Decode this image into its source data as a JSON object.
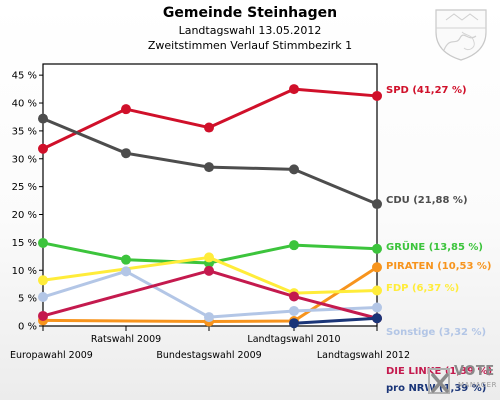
{
  "header": {
    "title": "Gemeinde Steinhagen",
    "subtitle1": "Landtagswahl 13.05.2012",
    "subtitle2": "Zweitstimmen Verlauf Stimmbezirk 1"
  },
  "logo": {
    "line1": "VOTE",
    "line2": "MANAGER"
  },
  "chart_data": {
    "type": "line",
    "x": [
      "Europawahl 2009",
      "Ratswahl 2009",
      "Bundestagswahl 2009",
      "Landtagswahl 2010",
      "Landtagswahl 2012"
    ],
    "ylim": [
      0,
      47
    ],
    "yticks": [
      "0 %",
      "5 %",
      "10 %",
      "15 %",
      "20 %",
      "25 %",
      "30 %",
      "35 %",
      "40 %",
      "45 %"
    ],
    "ytick_values": [
      0,
      5,
      10,
      15,
      20,
      25,
      30,
      35,
      40,
      45
    ],
    "grid": false,
    "series": [
      {
        "name": "SPD",
        "label": "SPD (41,27 %)",
        "color": "#d0102a",
        "values": [
          31.8,
          38.9,
          35.6,
          42.5,
          41.27
        ]
      },
      {
        "name": "CDU",
        "label": "CDU (21,88 %)",
        "color": "#4d4d4d",
        "values": [
          37.2,
          31.0,
          28.5,
          28.1,
          21.88
        ]
      },
      {
        "name": "GRÜNE",
        "label": "GRÜNE (13,85 %)",
        "color": "#3cc43c",
        "values": [
          14.9,
          11.9,
          11.3,
          14.5,
          13.85
        ]
      },
      {
        "name": "PIRATEN",
        "label": "PIRATEN (10,53 %)",
        "color": "#f7941d",
        "values": [
          1.0,
          null,
          0.8,
          0.9,
          10.53
        ]
      },
      {
        "name": "FDP",
        "label": "FDP (6,37 %)",
        "color": "#ffec3a",
        "values": [
          8.2,
          null,
          12.3,
          5.9,
          6.37
        ]
      },
      {
        "name": "Sonstige",
        "label": "Sonstige (3,32 %)",
        "color": "#b3c6e6",
        "values": [
          5.2,
          9.8,
          1.6,
          2.7,
          3.32
        ]
      },
      {
        "name": "DIE LINKE",
        "label": "DIE LINKE (1,39 %)",
        "color": "#c41a4e",
        "values": [
          1.8,
          null,
          9.9,
          5.3,
          1.39
        ]
      },
      {
        "name": "pro NRW",
        "label": "pro NRW (1,39 %)",
        "color": "#1a3578",
        "values": [
          null,
          null,
          null,
          0.5,
          1.39
        ]
      }
    ]
  }
}
